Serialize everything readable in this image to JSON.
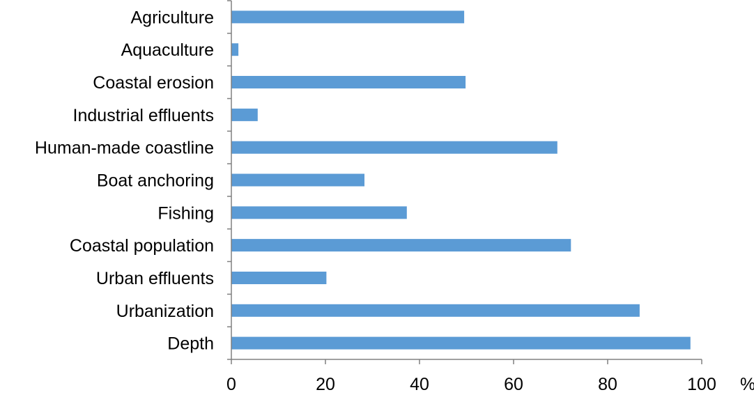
{
  "chart_data": {
    "type": "bar",
    "orientation": "horizontal",
    "categories": [
      "Agriculture",
      "Aquaculture",
      "Coastal erosion",
      "Industrial effluents",
      "Human-made coastline",
      "Boat anchoring",
      "Fishing",
      "Coastal population",
      "Urban effluents",
      "Urbanization",
      "Depth"
    ],
    "values": [
      49.5,
      1.5,
      49.8,
      5.6,
      69.3,
      28.3,
      37.3,
      72.2,
      20.2,
      86.8,
      97.6
    ],
    "xlim": [
      0,
      100
    ],
    "xticks": [
      "0",
      "20",
      "40",
      "60",
      "80",
      "100"
    ],
    "xunit": "%",
    "bar_color": "#5b9bd5",
    "axis_color": "#808080",
    "grid": false,
    "legend": "none"
  }
}
